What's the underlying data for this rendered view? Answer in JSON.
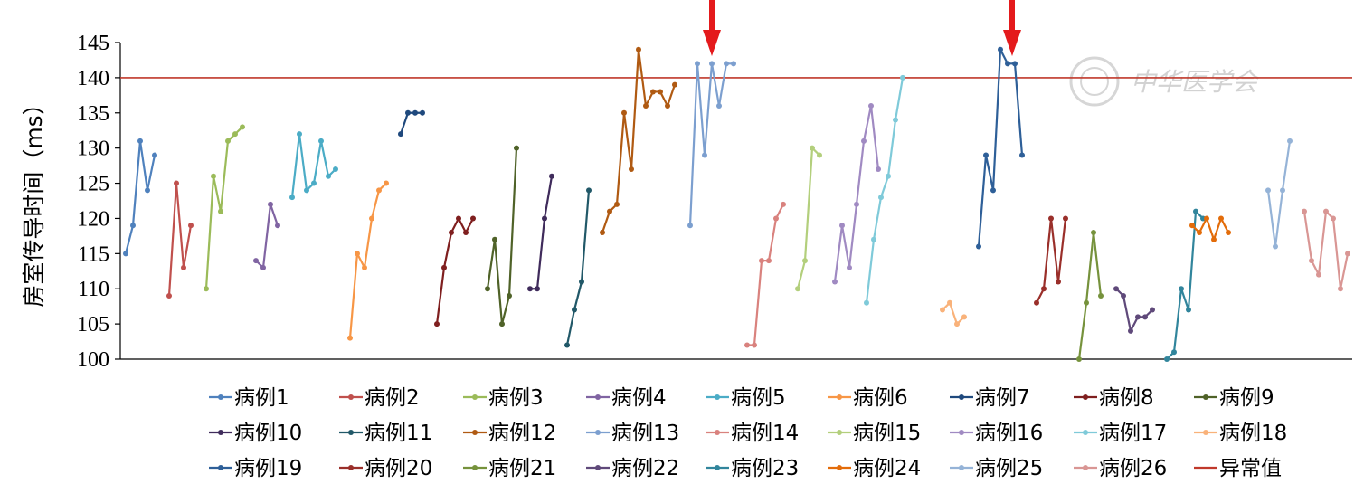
{
  "chart_data": {
    "type": "line",
    "title": "",
    "xlabel": "",
    "ylabel": "房室传导时间（ms）",
    "ylim": [
      100,
      145
    ],
    "yticks": [
      100,
      105,
      110,
      115,
      120,
      125,
      130,
      135,
      140,
      145
    ],
    "grid": false,
    "legend_position": "bottom",
    "reference_line": {
      "name": "异常值",
      "value": 140,
      "color": "#c0392b"
    },
    "annotations": [
      "red-arrow",
      "red-arrow"
    ],
    "watermark": "中华医学会",
    "series": [
      {
        "name": "病例1",
        "color": "#4f81bd",
        "values": [
          115,
          119,
          131,
          124,
          129
        ]
      },
      {
        "name": "病例2",
        "color": "#c0504d",
        "values": [
          109,
          125,
          113,
          119
        ]
      },
      {
        "name": "病例3",
        "color": "#9bbb59",
        "values": [
          110,
          126,
          121,
          131,
          132,
          133
        ]
      },
      {
        "name": "病例4",
        "color": "#8064a2",
        "values": [
          114,
          113,
          122,
          119
        ]
      },
      {
        "name": "病例5",
        "color": "#4bacc6",
        "values": [
          123,
          132,
          124,
          125,
          131,
          126,
          127
        ]
      },
      {
        "name": "病例6",
        "color": "#f79646",
        "values": [
          103,
          115,
          113,
          120,
          124,
          125
        ]
      },
      {
        "name": "病例7",
        "color": "#1f497d",
        "values": [
          132,
          135,
          135,
          135
        ]
      },
      {
        "name": "病例8",
        "color": "#7f1f1f",
        "values": [
          105,
          113,
          118,
          120,
          118,
          120
        ]
      },
      {
        "name": "病例9",
        "color": "#4f6228",
        "values": [
          110,
          117,
          105,
          109,
          130
        ]
      },
      {
        "name": "病例10",
        "color": "#3f2b5b",
        "values": [
          110,
          110,
          120,
          126
        ]
      },
      {
        "name": "病例11",
        "color": "#215868",
        "values": [
          102,
          107,
          111,
          124
        ]
      },
      {
        "name": "病例12",
        "color": "#b05a12",
        "values": [
          118,
          121,
          122,
          135,
          127,
          144,
          136,
          138,
          138,
          136,
          139
        ]
      },
      {
        "name": "病例13",
        "color": "#7c9fcf",
        "values": [
          119,
          142,
          129,
          142,
          136,
          142,
          142
        ]
      },
      {
        "name": "病例14",
        "color": "#d9827e",
        "values": [
          102,
          102,
          114,
          114,
          120,
          122
        ]
      },
      {
        "name": "病例15",
        "color": "#b3cf7c",
        "values": [
          110,
          114,
          130,
          129
        ]
      },
      {
        "name": "病例16",
        "color": "#a08ac2",
        "values": [
          111,
          119,
          113,
          122,
          131,
          136,
          127
        ]
      },
      {
        "name": "病例17",
        "color": "#7fcad9",
        "values": [
          108,
          117,
          123,
          126,
          134,
          140
        ]
      },
      {
        "name": "病例18",
        "color": "#f9b27a",
        "values": [
          107,
          108,
          105,
          106
        ]
      },
      {
        "name": "病例19",
        "color": "#2e5f98",
        "values": [
          116,
          129,
          124,
          144,
          142,
          142,
          129
        ]
      },
      {
        "name": "病例20",
        "color": "#9a2f2a",
        "values": [
          108,
          110,
          120,
          111,
          120
        ]
      },
      {
        "name": "病例21",
        "color": "#76923c",
        "values": [
          100,
          108,
          118,
          109
        ]
      },
      {
        "name": "病例22",
        "color": "#5f497a",
        "values": [
          110,
          109,
          104,
          106,
          106,
          107
        ]
      },
      {
        "name": "病例23",
        "color": "#31859c",
        "values": [
          100,
          101,
          110,
          107,
          121,
          120
        ]
      },
      {
        "name": "病例24",
        "color": "#e36c0a",
        "values": [
          119,
          118,
          120,
          117,
          120,
          118
        ]
      },
      {
        "name": "病例25",
        "color": "#95b3d7",
        "values": [
          124,
          116,
          124,
          131
        ]
      },
      {
        "name": "病例26",
        "color": "#d99694",
        "values": [
          121,
          114,
          112,
          121,
          120,
          110,
          115
        ]
      }
    ]
  }
}
